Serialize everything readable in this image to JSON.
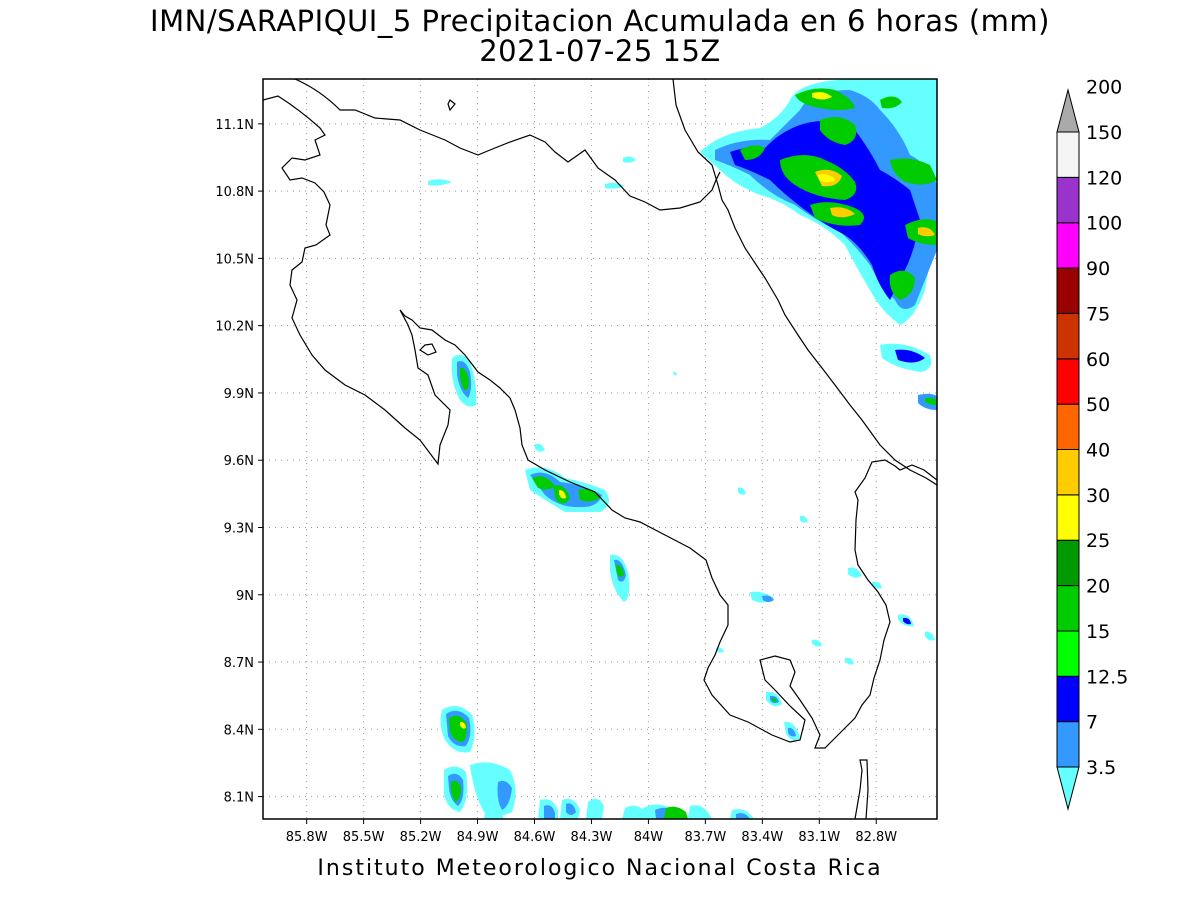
{
  "title": {
    "line1": "IMN/SARAPIQUI_5 Precipitacion Acumulada en 6 horas (mm)",
    "line2": "2021-07-25 15Z"
  },
  "footer": "Instituto Meteorologico Nacional Costa Rica",
  "map": {
    "lon_range": [
      -86.03,
      -82.48
    ],
    "lat_range": [
      8.0,
      11.3
    ],
    "lat_ticks": [
      "11.1N",
      "10.8N",
      "10.5N",
      "10.2N",
      "9.9N",
      "9.6N",
      "9.3N",
      "9N",
      "8.7N",
      "8.4N",
      "8.1N"
    ],
    "lon_ticks": [
      "85.8W",
      "85.5W",
      "85.2W",
      "84.9W",
      "84.6W",
      "84.3W",
      "84W",
      "83.7W",
      "83.4W",
      "83.1W",
      "82.8W"
    ],
    "grid": "dotted"
  },
  "colorbar": {
    "labels": [
      "3.5",
      "7",
      "12.5",
      "15",
      "20",
      "25",
      "30",
      "40",
      "50",
      "60",
      "75",
      "90",
      "100",
      "120",
      "150",
      "200"
    ],
    "colors": [
      "#66ffff",
      "#3399ff",
      "#0000ff",
      "#00ff00",
      "#00cc00",
      "#009900",
      "#ffff00",
      "#ffcc00",
      "#ff6600",
      "#ff0000",
      "#cc3300",
      "#990000",
      "#ff00ff",
      "#9933cc",
      "#f5f5f5",
      "#aaaaaa"
    ]
  }
}
